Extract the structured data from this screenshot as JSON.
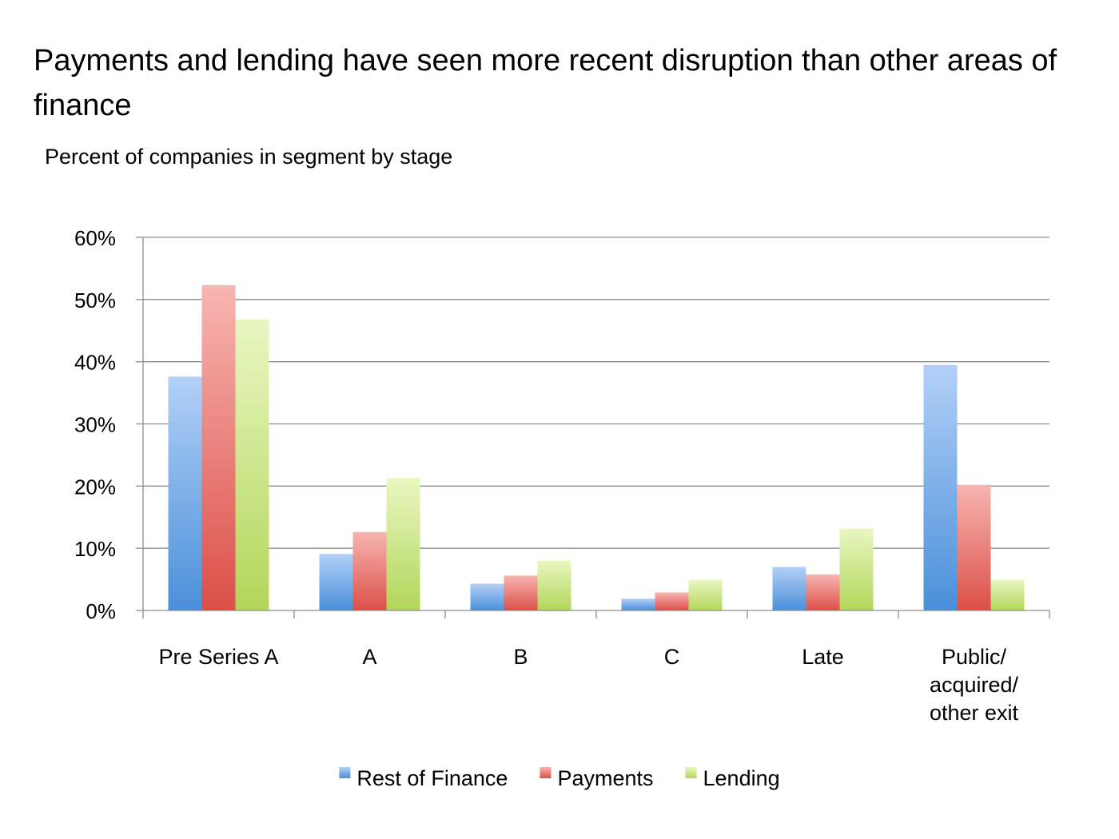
{
  "chart_data": {
    "type": "bar",
    "title": "Payments and lending have seen more recent disruption than other areas of finance",
    "subtitle": "Percent of companies in segment by stage",
    "categories": [
      [
        "Pre Series A"
      ],
      [
        "A"
      ],
      [
        "B"
      ],
      [
        "C"
      ],
      [
        "Late"
      ],
      [
        "Public/",
        "acquired/",
        "other exit"
      ]
    ],
    "series": [
      {
        "name": "Rest of Finance",
        "values": [
          37.6,
          9.1,
          4.3,
          1.9,
          7.0,
          39.5
        ],
        "color_top": "#b3d0f7",
        "color_bottom": "#4a90d9"
      },
      {
        "name": "Payments",
        "values": [
          52.3,
          12.6,
          5.6,
          2.9,
          5.8,
          20.2
        ],
        "color_top": "#f8b5b1",
        "color_bottom": "#db5048"
      },
      {
        "name": "Lending",
        "values": [
          46.8,
          21.3,
          8.0,
          4.9,
          13.2,
          4.9
        ],
        "color_top": "#e8f7c1",
        "color_bottom": "#b2d65a"
      }
    ],
    "ylim": [
      0,
      60
    ],
    "yticks": [
      0,
      10,
      20,
      30,
      40,
      50,
      60
    ],
    "ytick_suffix": "%",
    "grid": true,
    "legend_position": "bottom"
  }
}
